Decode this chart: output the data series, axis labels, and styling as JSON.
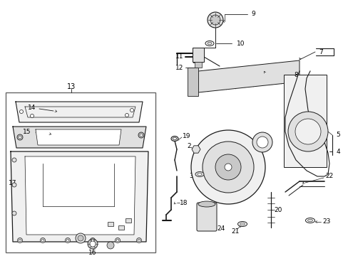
{
  "bg_color": "#ffffff",
  "line_color": "#1a1a1a",
  "fig_width": 4.89,
  "fig_height": 3.6,
  "dpi": 100,
  "gray1": "#c8c8c8",
  "gray2": "#e0e0e0",
  "gray3": "#f0f0f0",
  "box_color": "#888888"
}
